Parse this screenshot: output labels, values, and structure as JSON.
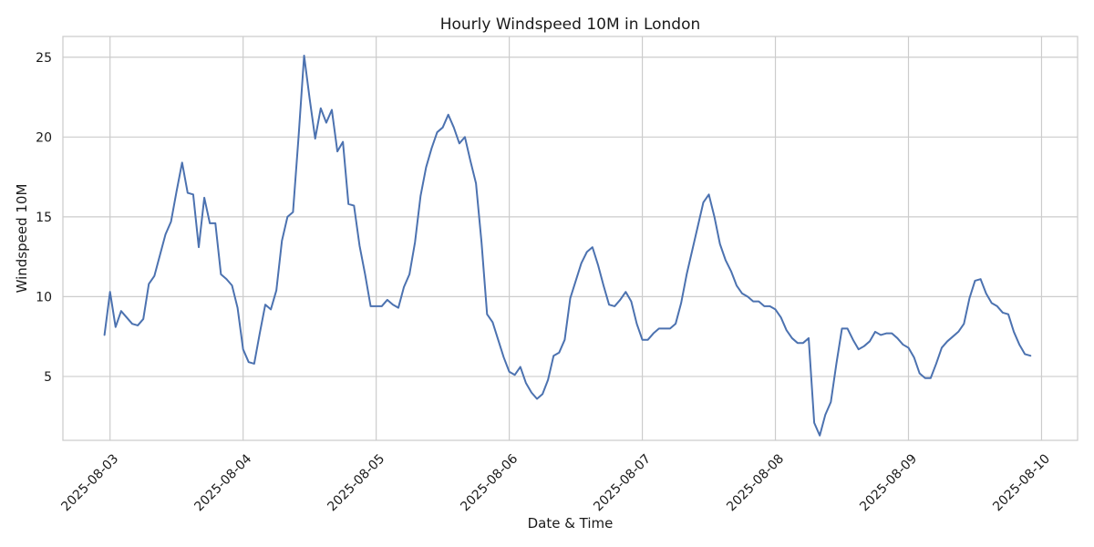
{
  "chart_data": {
    "type": "line",
    "title": "Hourly Windspeed 10M in London",
    "xlabel": "Date & Time",
    "ylabel": "Windspeed 10M",
    "x_start": "2025-08-02T23:00",
    "x_step_hours": 1,
    "xlim": [
      "2025-08-02T15:30",
      "2025-08-10T06:30"
    ],
    "ylim": [
      1.0,
      26.3
    ],
    "xticks": [
      "2025-08-03",
      "2025-08-04",
      "2025-08-05",
      "2025-08-06",
      "2025-08-07",
      "2025-08-08",
      "2025-08-09",
      "2025-08-10"
    ],
    "yticks": [
      5,
      10,
      15,
      20,
      25
    ],
    "x_tick_label_rotation": 45,
    "grid": true,
    "legend": "none",
    "colors": {
      "line": "#4c72b0",
      "grid": "#cccccc",
      "text": "#1a1a1a"
    },
    "series": [
      {
        "values": [
          7.6,
          10.3,
          8.1,
          9.1,
          8.7,
          8.3,
          8.2,
          8.6,
          10.8,
          11.3,
          12.6,
          13.9,
          14.7,
          16.6,
          18.4,
          16.5,
          16.4,
          13.1,
          16.2,
          14.6,
          14.6,
          11.4,
          11.1,
          10.7,
          9.3,
          6.7,
          5.9,
          5.8,
          7.7,
          9.5,
          9.2,
          10.4,
          13.5,
          15.0,
          15.3,
          20.0,
          25.1,
          22.4,
          19.9,
          21.8,
          20.9,
          21.7,
          19.1,
          19.7,
          15.8,
          15.7,
          13.2,
          11.4,
          9.4,
          9.4,
          9.4,
          9.8,
          9.5,
          9.3,
          10.6,
          11.4,
          13.4,
          16.3,
          18.1,
          19.3,
          20.3,
          20.6,
          21.4,
          20.6,
          19.6,
          20.0,
          18.5,
          17.1,
          13.4,
          8.9,
          8.4,
          7.3,
          6.2,
          5.3,
          5.1,
          5.6,
          4.6,
          4.0,
          3.6,
          3.9,
          4.8,
          6.3,
          6.5,
          7.3,
          9.9,
          11.0,
          12.1,
          12.8,
          13.1,
          12.0,
          10.7,
          9.5,
          9.4,
          9.8,
          10.3,
          9.7,
          8.3,
          7.3,
          7.3,
          7.7,
          8.0,
          8.0,
          8.0,
          8.3,
          9.6,
          11.4,
          12.9,
          14.4,
          15.9,
          16.4,
          15.0,
          13.3,
          12.3,
          11.6,
          10.7,
          10.2,
          10.0,
          9.7,
          9.7,
          9.4,
          9.4,
          9.2,
          8.7,
          7.9,
          7.4,
          7.1,
          7.1,
          7.4,
          2.1,
          1.3,
          2.6,
          3.4,
          5.8,
          8.0,
          8.0,
          7.3,
          6.7,
          6.9,
          7.2,
          7.8,
          7.6,
          7.7,
          7.7,
          7.4,
          7.0,
          6.8,
          6.2,
          5.2,
          4.9,
          4.9,
          5.8,
          6.8,
          7.2,
          7.5,
          7.8,
          8.3,
          9.9,
          11.0,
          11.1,
          10.2,
          9.6,
          9.4,
          9.0,
          8.9,
          7.8,
          7.0,
          6.4,
          6.3
        ]
      }
    ]
  }
}
